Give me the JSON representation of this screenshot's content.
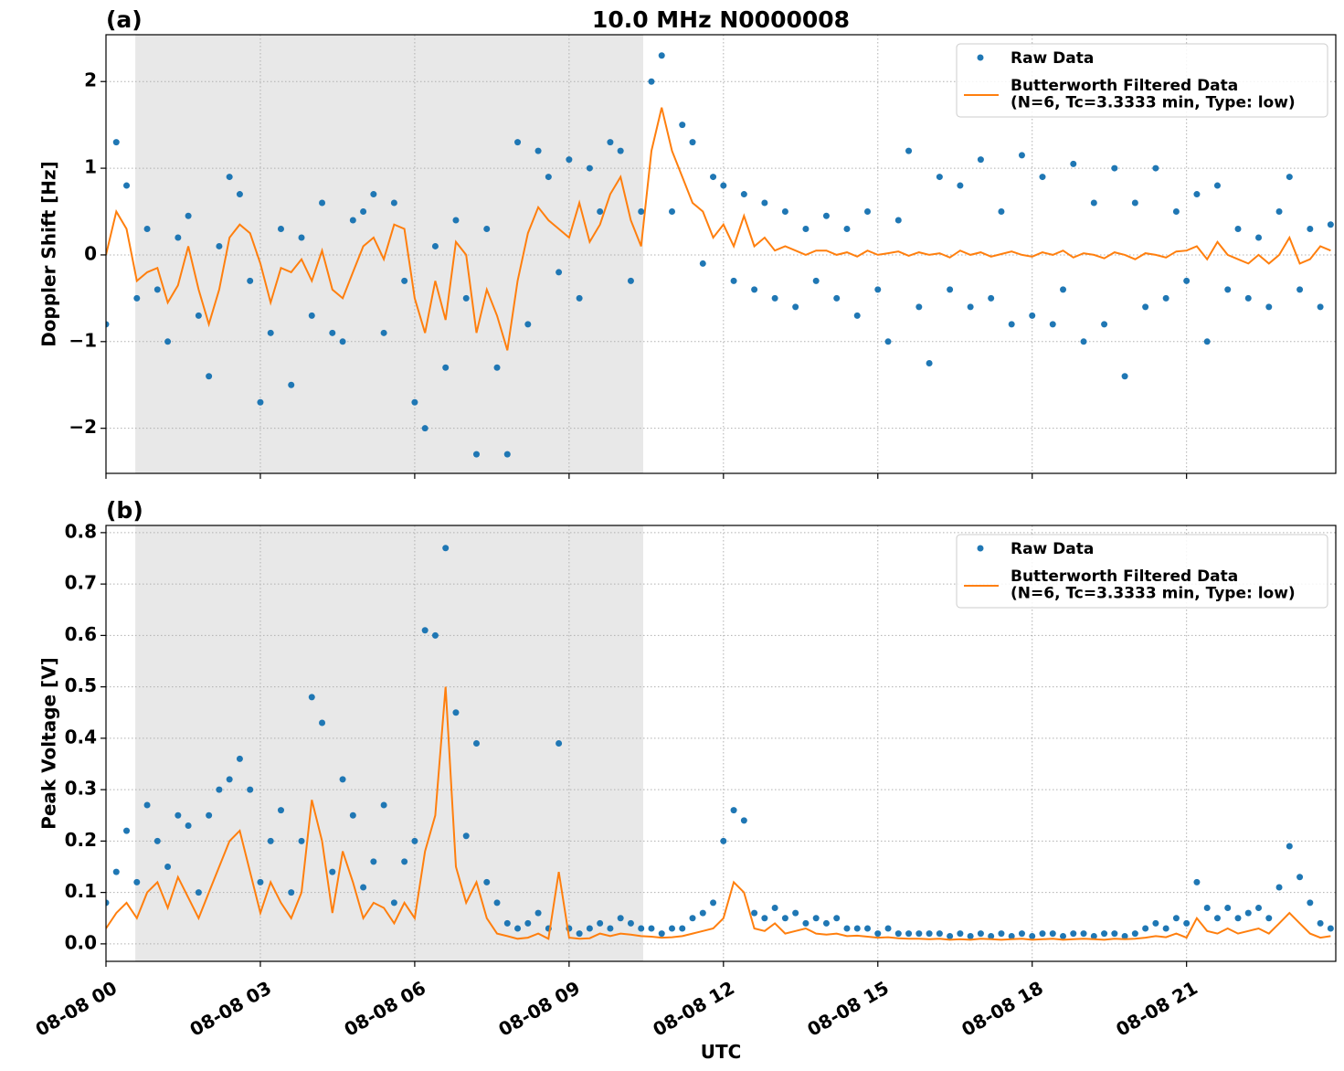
{
  "chart_data": [
    {
      "type": "scatter-line",
      "title": "10.0 MHz N0000008",
      "panel_label": "(a)",
      "ylabel": "Doppler Shift [Hz]",
      "xlim": [
        0,
        23.9
      ],
      "ylim": [
        -2.52,
        2.54
      ],
      "yticks": [
        {
          "value": -2,
          "label": "−2"
        },
        {
          "value": -1,
          "label": "−1"
        },
        0,
        1,
        2
      ],
      "shaded_span": [
        0.57,
        10.44
      ],
      "shade_color": "#e8e8e8",
      "grid": true,
      "legend": "upper right",
      "x": [
        0,
        0.2,
        0.4,
        0.6,
        0.8,
        1,
        1.2,
        1.4,
        1.6,
        1.8,
        2,
        2.2,
        2.4,
        2.6,
        2.8,
        3,
        3.2,
        3.4,
        3.6,
        3.8,
        4,
        4.2,
        4.4,
        4.6,
        4.8,
        5,
        5.2,
        5.4,
        5.6,
        5.8,
        6,
        6.2,
        6.4,
        6.6,
        6.8,
        7,
        7.2,
        7.4,
        7.6,
        7.8,
        8,
        8.2,
        8.4,
        8.6,
        8.8,
        9,
        9.2,
        9.4,
        9.6,
        9.8,
        10,
        10.2,
        10.4,
        10.6,
        10.8,
        11,
        11.2,
        11.4,
        11.6,
        11.8,
        12,
        12.2,
        12.4,
        12.6,
        12.8,
        13,
        13.2,
        13.4,
        13.6,
        13.8,
        14,
        14.2,
        14.4,
        14.6,
        14.8,
        15,
        15.2,
        15.4,
        15.6,
        15.8,
        16,
        16.2,
        16.4,
        16.6,
        16.8,
        17,
        17.2,
        17.4,
        17.6,
        17.8,
        18,
        18.2,
        18.4,
        18.6,
        18.8,
        19,
        19.2,
        19.4,
        19.6,
        19.8,
        20,
        20.2,
        20.4,
        20.6,
        20.8,
        21,
        21.2,
        21.4,
        21.6,
        21.8,
        22,
        22.2,
        22.4,
        22.6,
        22.8,
        23,
        23.2,
        23.4,
        23.6,
        23.8
      ],
      "series": [
        {
          "name": "Raw Data",
          "color": "#1f77b4",
          "kind": "points",
          "values": [
            -0.8,
            1.3,
            0.8,
            -0.5,
            0.3,
            -0.4,
            -1.0,
            0.2,
            0.45,
            -0.7,
            -1.4,
            0.1,
            0.9,
            0.7,
            -0.3,
            -1.7,
            -0.9,
            0.3,
            -1.5,
            0.2,
            -0.7,
            0.6,
            -0.9,
            -1.0,
            0.4,
            0.5,
            0.7,
            -0.9,
            0.6,
            -0.3,
            -1.7,
            -2.0,
            0.1,
            -1.3,
            0.4,
            -0.5,
            -2.3,
            0.3,
            -1.3,
            -2.3,
            1.3,
            -0.8,
            1.2,
            0.9,
            -0.2,
            1.1,
            -0.5,
            1.0,
            0.5,
            1.3,
            1.2,
            -0.3,
            0.5,
            2.0,
            2.3,
            0.5,
            1.5,
            1.3,
            -0.1,
            0.9,
            0.8,
            -0.3,
            0.7,
            -0.4,
            0.6,
            -0.5,
            0.5,
            -0.6,
            0.3,
            -0.3,
            0.45,
            -0.5,
            0.3,
            -0.7,
            0.5,
            -0.4,
            -1.0,
            0.4,
            1.2,
            -0.6,
            -1.25,
            0.9,
            -0.4,
            0.8,
            -0.6,
            1.1,
            -0.5,
            0.5,
            -0.8,
            1.15,
            -0.7,
            0.9,
            -0.8,
            -0.4,
            1.05,
            -1.0,
            0.6,
            -0.8,
            1.0,
            -1.4,
            0.6,
            -0.6,
            1.0,
            -0.5,
            0.5,
            -0.3,
            0.7,
            -1.0,
            0.8,
            -0.4,
            0.3,
            -0.5,
            0.2,
            -0.6,
            0.5,
            0.9,
            -0.4,
            0.3,
            -0.6,
            0.35
          ]
        },
        {
          "name": "Butterworth Filtered Data\n(N=6, Tc=3.3333 min, Type: low)",
          "color": "#ff7f0e",
          "kind": "line",
          "values": [
            0.0,
            0.5,
            0.3,
            -0.3,
            -0.2,
            -0.15,
            -0.55,
            -0.35,
            0.1,
            -0.4,
            -0.8,
            -0.4,
            0.2,
            0.35,
            0.25,
            -0.1,
            -0.55,
            -0.15,
            -0.2,
            -0.05,
            -0.3,
            0.05,
            -0.4,
            -0.5,
            -0.2,
            0.1,
            0.2,
            -0.05,
            0.35,
            0.3,
            -0.5,
            -0.9,
            -0.3,
            -0.75,
            0.15,
            0.0,
            -0.9,
            -0.4,
            -0.7,
            -1.1,
            -0.3,
            0.25,
            0.55,
            0.4,
            0.3,
            0.2,
            0.6,
            0.15,
            0.35,
            0.7,
            0.9,
            0.4,
            0.1,
            1.2,
            1.7,
            1.2,
            0.9,
            0.6,
            0.5,
            0.2,
            0.35,
            0.1,
            0.45,
            0.1,
            0.2,
            0.05,
            0.1,
            0.05,
            0.0,
            0.05,
            0.05,
            0.0,
            0.03,
            -0.02,
            0.05,
            0.0,
            0.02,
            0.04,
            -0.01,
            0.03,
            0.0,
            0.02,
            -0.03,
            0.05,
            0.0,
            0.03,
            -0.02,
            0.01,
            0.04,
            0.0,
            -0.02,
            0.03,
            0.0,
            0.05,
            -0.03,
            0.02,
            0.0,
            -0.04,
            0.03,
            0.0,
            -0.05,
            0.02,
            0.0,
            -0.03,
            0.04,
            0.05,
            0.1,
            -0.05,
            0.15,
            0.0,
            -0.05,
            -0.1,
            0.0,
            -0.1,
            0.0,
            0.2,
            -0.1,
            -0.05,
            0.1,
            0.05
          ]
        }
      ]
    },
    {
      "type": "scatter-line",
      "panel_label": "(b)",
      "ylabel": "Peak Voltage [V]",
      "xlabel": "UTC",
      "xlim": [
        0,
        23.9
      ],
      "ylim": [
        -0.034,
        0.814
      ],
      "xticks": [
        {
          "value": 0,
          "label": "08-08 00"
        },
        {
          "value": 3,
          "label": "08-08 03"
        },
        {
          "value": 6,
          "label": "08-08 06"
        },
        {
          "value": 9,
          "label": "08-08 09"
        },
        {
          "value": 12,
          "label": "08-08 12"
        },
        {
          "value": 15,
          "label": "08-08 15"
        },
        {
          "value": 18,
          "label": "08-08 18"
        },
        {
          "value": 21,
          "label": "08-08 21"
        }
      ],
      "yticks": [
        {
          "value": 0,
          "label": "0.0"
        },
        0.1,
        0.2,
        0.3,
        0.4,
        0.5,
        0.6,
        0.7,
        0.8
      ],
      "shaded_span": [
        0.57,
        10.44
      ],
      "shade_color": "#e8e8e8",
      "grid": true,
      "legend": "upper right",
      "x": [
        0,
        0.2,
        0.4,
        0.6,
        0.8,
        1,
        1.2,
        1.4,
        1.6,
        1.8,
        2,
        2.2,
        2.4,
        2.6,
        2.8,
        3,
        3.2,
        3.4,
        3.6,
        3.8,
        4,
        4.2,
        4.4,
        4.6,
        4.8,
        5,
        5.2,
        5.4,
        5.6,
        5.8,
        6,
        6.2,
        6.4,
        6.6,
        6.8,
        7,
        7.2,
        7.4,
        7.6,
        7.8,
        8,
        8.2,
        8.4,
        8.6,
        8.8,
        9,
        9.2,
        9.4,
        9.6,
        9.8,
        10,
        10.2,
        10.4,
        10.6,
        10.8,
        11,
        11.2,
        11.4,
        11.6,
        11.8,
        12,
        12.2,
        12.4,
        12.6,
        12.8,
        13,
        13.2,
        13.4,
        13.6,
        13.8,
        14,
        14.2,
        14.4,
        14.6,
        14.8,
        15,
        15.2,
        15.4,
        15.6,
        15.8,
        16,
        16.2,
        16.4,
        16.6,
        16.8,
        17,
        17.2,
        17.4,
        17.6,
        17.8,
        18,
        18.2,
        18.4,
        18.6,
        18.8,
        19,
        19.2,
        19.4,
        19.6,
        19.8,
        20,
        20.2,
        20.4,
        20.6,
        20.8,
        21,
        21.2,
        21.4,
        21.6,
        21.8,
        22,
        22.2,
        22.4,
        22.6,
        22.8,
        23,
        23.2,
        23.4,
        23.6,
        23.8
      ],
      "series": [
        {
          "name": "Raw Data",
          "color": "#1f77b4",
          "kind": "points",
          "values": [
            0.08,
            0.14,
            0.22,
            0.12,
            0.27,
            0.2,
            0.15,
            0.25,
            0.23,
            0.1,
            0.25,
            0.3,
            0.32,
            0.36,
            0.3,
            0.12,
            0.2,
            0.26,
            0.1,
            0.2,
            0.48,
            0.43,
            0.14,
            0.32,
            0.25,
            0.11,
            0.16,
            0.27,
            0.08,
            0.16,
            0.2,
            0.61,
            0.6,
            0.77,
            0.45,
            0.21,
            0.39,
            0.12,
            0.08,
            0.04,
            0.03,
            0.04,
            0.06,
            0.03,
            0.39,
            0.03,
            0.02,
            0.03,
            0.04,
            0.03,
            0.05,
            0.04,
            0.03,
            0.03,
            0.02,
            0.03,
            0.03,
            0.05,
            0.06,
            0.08,
            0.2,
            0.26,
            0.24,
            0.06,
            0.05,
            0.07,
            0.05,
            0.06,
            0.04,
            0.05,
            0.04,
            0.05,
            0.03,
            0.03,
            0.03,
            0.02,
            0.03,
            0.02,
            0.02,
            0.02,
            0.02,
            0.02,
            0.015,
            0.02,
            0.015,
            0.02,
            0.015,
            0.02,
            0.015,
            0.02,
            0.015,
            0.02,
            0.02,
            0.015,
            0.02,
            0.02,
            0.015,
            0.02,
            0.02,
            0.015,
            0.02,
            0.03,
            0.04,
            0.03,
            0.05,
            0.04,
            0.12,
            0.07,
            0.05,
            0.07,
            0.05,
            0.06,
            0.07,
            0.05,
            0.11,
            0.19,
            0.13,
            0.08,
            0.04,
            0.03
          ]
        },
        {
          "name": "Butterworth Filtered Data\n(N=6, Tc=3.3333 min, Type: low)",
          "color": "#ff7f0e",
          "kind": "line",
          "values": [
            0.03,
            0.06,
            0.08,
            0.05,
            0.1,
            0.12,
            0.07,
            0.13,
            0.09,
            0.05,
            0.1,
            0.15,
            0.2,
            0.22,
            0.14,
            0.06,
            0.12,
            0.08,
            0.05,
            0.1,
            0.28,
            0.2,
            0.06,
            0.18,
            0.12,
            0.05,
            0.08,
            0.07,
            0.04,
            0.08,
            0.05,
            0.18,
            0.25,
            0.5,
            0.15,
            0.08,
            0.12,
            0.05,
            0.02,
            0.015,
            0.01,
            0.012,
            0.02,
            0.01,
            0.14,
            0.012,
            0.01,
            0.011,
            0.02,
            0.015,
            0.02,
            0.018,
            0.015,
            0.014,
            0.012,
            0.013,
            0.015,
            0.02,
            0.025,
            0.03,
            0.05,
            0.12,
            0.1,
            0.03,
            0.025,
            0.04,
            0.02,
            0.025,
            0.03,
            0.02,
            0.018,
            0.02,
            0.015,
            0.016,
            0.014,
            0.012,
            0.013,
            0.011,
            0.01,
            0.01,
            0.009,
            0.01,
            0.008,
            0.009,
            0.008,
            0.01,
            0.009,
            0.008,
            0.009,
            0.01,
            0.008,
            0.009,
            0.01,
            0.008,
            0.009,
            0.01,
            0.009,
            0.008,
            0.01,
            0.009,
            0.01,
            0.012,
            0.015,
            0.013,
            0.02,
            0.012,
            0.05,
            0.025,
            0.02,
            0.03,
            0.02,
            0.025,
            0.03,
            0.02,
            0.04,
            0.06,
            0.04,
            0.02,
            0.012,
            0.015
          ]
        }
      ]
    }
  ]
}
